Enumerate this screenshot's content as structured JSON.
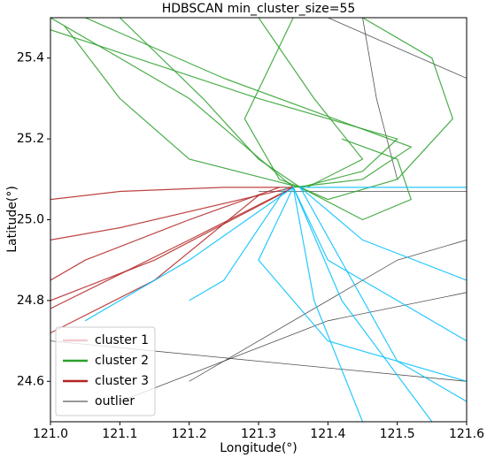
{
  "chart_data": {
    "type": "trajectory",
    "title": "HDBSCAN min_cluster_size=55",
    "xlabel": "Longitude(°)",
    "ylabel": "Latitude(°)",
    "xlim": [
      121.0,
      121.6
    ],
    "ylim": [
      24.5,
      25.5
    ],
    "xticks": [
      {
        "value": 121.0,
        "label": "121.0"
      },
      121.1,
      121.2,
      121.3,
      121.4,
      121.5,
      {
        "value": 121.6,
        "label": "121.6"
      }
    ],
    "yticks": [
      24.6,
      24.8,
      {
        "value": 25.0,
        "label": "25.0"
      },
      25.2,
      25.4
    ],
    "legend": "lower left",
    "series": [
      {
        "name": "cluster 1",
        "color": "#00bfff",
        "legend_color": "#f6c9cf",
        "tracks": [
          {
            "x": [
              121.35,
              121.4,
              121.6
            ],
            "y": [
              25.08,
              24.9,
              24.7
            ]
          },
          {
            "x": [
              121.36,
              121.45,
              121.6
            ],
            "y": [
              25.08,
              24.95,
              24.85
            ]
          },
          {
            "x": [
              121.35,
              121.42,
              121.55
            ],
            "y": [
              25.08,
              24.8,
              24.5
            ]
          },
          {
            "x": [
              121.35,
              121.38,
              121.45
            ],
            "y": [
              25.08,
              24.8,
              24.5
            ]
          },
          {
            "x": [
              121.36,
              121.6
            ],
            "y": [
              25.08,
              25.08
            ]
          },
          {
            "x": [
              121.34,
              121.25,
              121.2
            ],
            "y": [
              25.08,
              24.85,
              24.8
            ]
          },
          {
            "x": [
              121.35,
              121.2,
              121.05
            ],
            "y": [
              25.08,
              24.9,
              24.75
            ]
          },
          {
            "x": [
              121.36,
              121.5,
              121.6
            ],
            "y": [
              25.08,
              24.65,
              24.55
            ]
          },
          {
            "x": [
              121.35,
              121.3,
              121.4,
              121.6
            ],
            "y": [
              25.08,
              24.9,
              24.7,
              24.6
            ]
          }
        ]
      },
      {
        "name": "cluster 2",
        "color": "#2ca02c",
        "tracks": [
          {
            "x": [
              121.0,
              121.2,
              121.35
            ],
            "y": [
              25.5,
              25.3,
              25.08
            ]
          },
          {
            "x": [
              121.05,
              121.25,
              121.52,
              121.45,
              121.35
            ],
            "y": [
              25.5,
              25.35,
              25.18,
              25.1,
              25.08
            ]
          },
          {
            "x": [
              121.0,
              121.3,
              121.5,
              121.45,
              121.36
            ],
            "y": [
              25.47,
              25.3,
              25.2,
              25.12,
              25.08
            ]
          },
          {
            "x": [
              121.1,
              121.22,
              121.3,
              121.36
            ],
            "y": [
              25.5,
              25.3,
              25.15,
              25.08
            ]
          },
          {
            "x": [
              121.3,
              121.38,
              121.45,
              121.37
            ],
            "y": [
              25.5,
              25.3,
              25.15,
              25.08
            ]
          },
          {
            "x": [
              121.45,
              121.55,
              121.58,
              121.5,
              121.4,
              121.36
            ],
            "y": [
              25.5,
              25.4,
              25.25,
              25.1,
              25.05,
              25.08
            ]
          },
          {
            "x": [
              121.02,
              121.1,
              121.2,
              121.36
            ],
            "y": [
              25.48,
              25.3,
              25.15,
              25.08
            ]
          },
          {
            "x": [
              121.35,
              121.28,
              121.33,
              121.36
            ],
            "y": [
              25.5,
              25.25,
              25.1,
              25.08
            ]
          },
          {
            "x": [
              121.36,
              121.45,
              121.52,
              121.5,
              121.42
            ],
            "y": [
              25.08,
              25.0,
              25.05,
              25.15,
              25.2
            ]
          }
        ]
      },
      {
        "name": "cluster 3",
        "color": "#b22222",
        "tracks": [
          {
            "x": [
              121.35,
              121.2,
              121.0
            ],
            "y": [
              25.08,
              24.95,
              24.78
            ]
          },
          {
            "x": [
              121.34,
              121.15,
              121.0
            ],
            "y": [
              25.07,
              24.9,
              24.8
            ]
          },
          {
            "x": [
              121.33,
              121.2,
              121.05,
              121.0
            ],
            "y": [
              25.08,
              25.0,
              24.9,
              24.85
            ]
          },
          {
            "x": [
              121.35,
              121.1,
              121.0
            ],
            "y": [
              25.08,
              24.98,
              24.95
            ]
          },
          {
            "x": [
              121.3,
              121.15,
              121.0
            ],
            "y": [
              25.06,
              24.85,
              24.72
            ]
          },
          {
            "x": [
              121.35,
              121.25,
              121.1,
              121.0
            ],
            "y": [
              25.08,
              25.08,
              25.07,
              25.05
            ]
          }
        ]
      },
      {
        "name": "outlier",
        "color": "#333333",
        "tracks": [
          {
            "x": [
              121.45,
              121.47,
              121.5
            ],
            "y": [
              25.5,
              25.3,
              25.1
            ]
          },
          {
            "x": [
              121.0,
              121.3,
              121.6
            ],
            "y": [
              24.7,
              24.65,
              24.6
            ]
          },
          {
            "x": [
              121.1,
              121.4,
              121.6
            ],
            "y": [
              24.55,
              24.75,
              24.82
            ]
          },
          {
            "x": [
              121.4,
              121.6
            ],
            "y": [
              25.5,
              25.35
            ]
          },
          {
            "x": [
              121.2,
              121.5,
              121.6
            ],
            "y": [
              24.6,
              24.9,
              24.95
            ]
          },
          {
            "x": [
              121.3,
              121.6
            ],
            "y": [
              25.07,
              25.07
            ]
          }
        ]
      }
    ]
  }
}
